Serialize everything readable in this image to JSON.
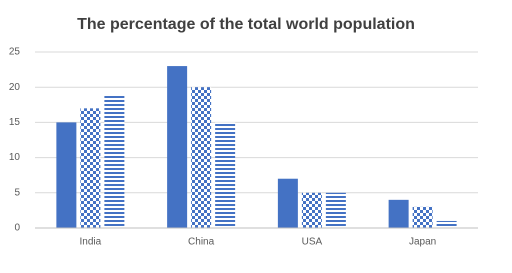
{
  "chart_data": {
    "type": "bar",
    "title": "The percentage of the total world population",
    "categories": [
      "India",
      "China",
      "USA",
      "Japan"
    ],
    "series": [
      {
        "color": "#4472c4",
        "pattern": "solid",
        "values": [
          15,
          23,
          7,
          4
        ]
      },
      {
        "color": "#4472c4",
        "pattern": "checker",
        "values": [
          17,
          20,
          5,
          3
        ]
      },
      {
        "color": "#4472c4",
        "pattern": "stripes",
        "values": [
          19,
          15,
          5,
          1
        ]
      }
    ],
    "ylim": [
      0,
      25
    ],
    "yticks": [
      0,
      5,
      10,
      15,
      20,
      25
    ],
    "grid": true
  }
}
